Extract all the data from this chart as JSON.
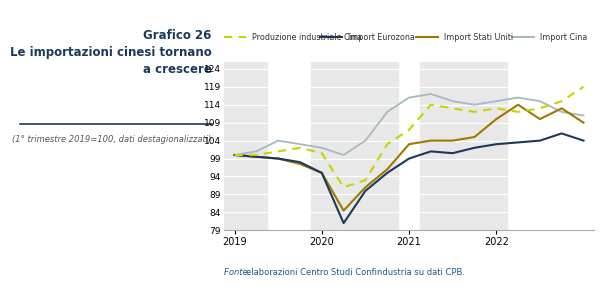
{
  "title": "Grafico 26\nLe importazioni cinesi tornano\na crescere",
  "subtitle": "(1° trimestre 2019=100, dati destagionalizzati)",
  "fonte": "Fonte: elaborazioni Centro Studi Confindustria su dati CPB.",
  "legend_labels": [
    "Produzione industriale Cina",
    "Import Eurozona",
    "Import Stati Uniti",
    "Import Cina"
  ],
  "ylim": [
    79,
    126
  ],
  "yticks": [
    79,
    84,
    89,
    94,
    99,
    104,
    109,
    114,
    119,
    124
  ],
  "x_labels": [
    "2019",
    "2020",
    "2021",
    "2022"
  ],
  "colors": {
    "prod_ind_cina": "#c8d400",
    "import_eurozona": "#1a3a5c",
    "import_stati_uniti": "#a07800",
    "import_cina": "#a8b8c0"
  },
  "shade_color": "#e8e8e8",
  "prod_ind_cina_q": [
    100,
    100,
    101,
    102,
    100.5,
    91,
    93,
    103,
    107,
    114,
    113,
    112,
    113,
    112,
    113,
    115,
    119
  ],
  "import_eurozona_q": [
    100,
    99.5,
    99,
    98,
    95,
    81,
    90,
    95,
    99,
    101,
    100.5,
    102,
    103,
    103.5,
    104,
    106,
    104
  ],
  "import_stati_uniti_q": [
    100,
    99.5,
    99,
    97.5,
    95,
    84.5,
    91,
    96,
    103,
    104,
    104,
    105,
    110,
    114,
    110,
    113,
    109
  ],
  "import_cina_q": [
    100,
    101,
    104,
    103,
    102,
    100,
    104,
    112,
    116,
    117,
    115,
    114,
    115,
    116,
    115,
    112,
    111
  ]
}
